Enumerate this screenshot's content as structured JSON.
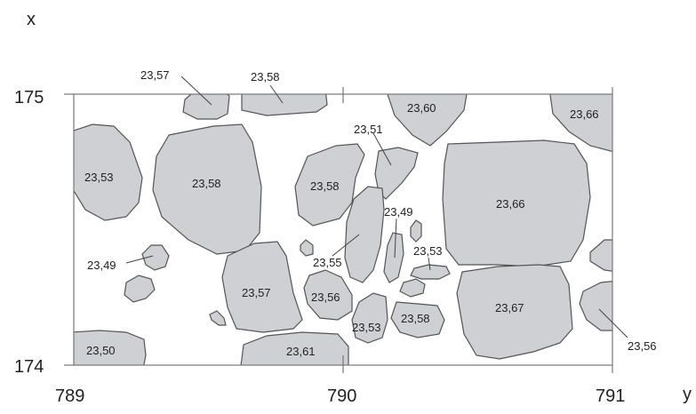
{
  "axes": {
    "x_axis_letter": "x",
    "y_axis_letter": "y",
    "x_ticks": [
      "175",
      "174"
    ],
    "y_ticks": [
      "789",
      "790",
      "791"
    ]
  },
  "stones": [
    {
      "id": "s1",
      "value": "23,57"
    },
    {
      "id": "s2",
      "value": "23,58"
    },
    {
      "id": "s3",
      "value": "23,60"
    },
    {
      "id": "s4",
      "value": "23,66"
    },
    {
      "id": "s5",
      "value": "23,53"
    },
    {
      "id": "s6",
      "value": "23,58"
    },
    {
      "id": "s7",
      "value": "23,58"
    },
    {
      "id": "s8",
      "value": "23,51"
    },
    {
      "id": "s9",
      "value": "23,66"
    },
    {
      "id": "s10",
      "value": "23,49"
    },
    {
      "id": "s11",
      "value": "23,55"
    },
    {
      "id": "s12",
      "value": "23,49"
    },
    {
      "id": "s13",
      "value": "23,53"
    },
    {
      "id": "s14",
      "value": "23,57"
    },
    {
      "id": "s15",
      "value": "23,56"
    },
    {
      "id": "s16",
      "value": "23,53"
    },
    {
      "id": "s17",
      "value": "23,58"
    },
    {
      "id": "s18",
      "value": "23,67"
    },
    {
      "id": "s19",
      "value": "23,50"
    },
    {
      "id": "s20",
      "value": "23,61"
    },
    {
      "id": "s21",
      "value": "23,56"
    }
  ],
  "colors": {
    "stone_fill": "#cfd0d3",
    "stone_outline": "#555555"
  }
}
